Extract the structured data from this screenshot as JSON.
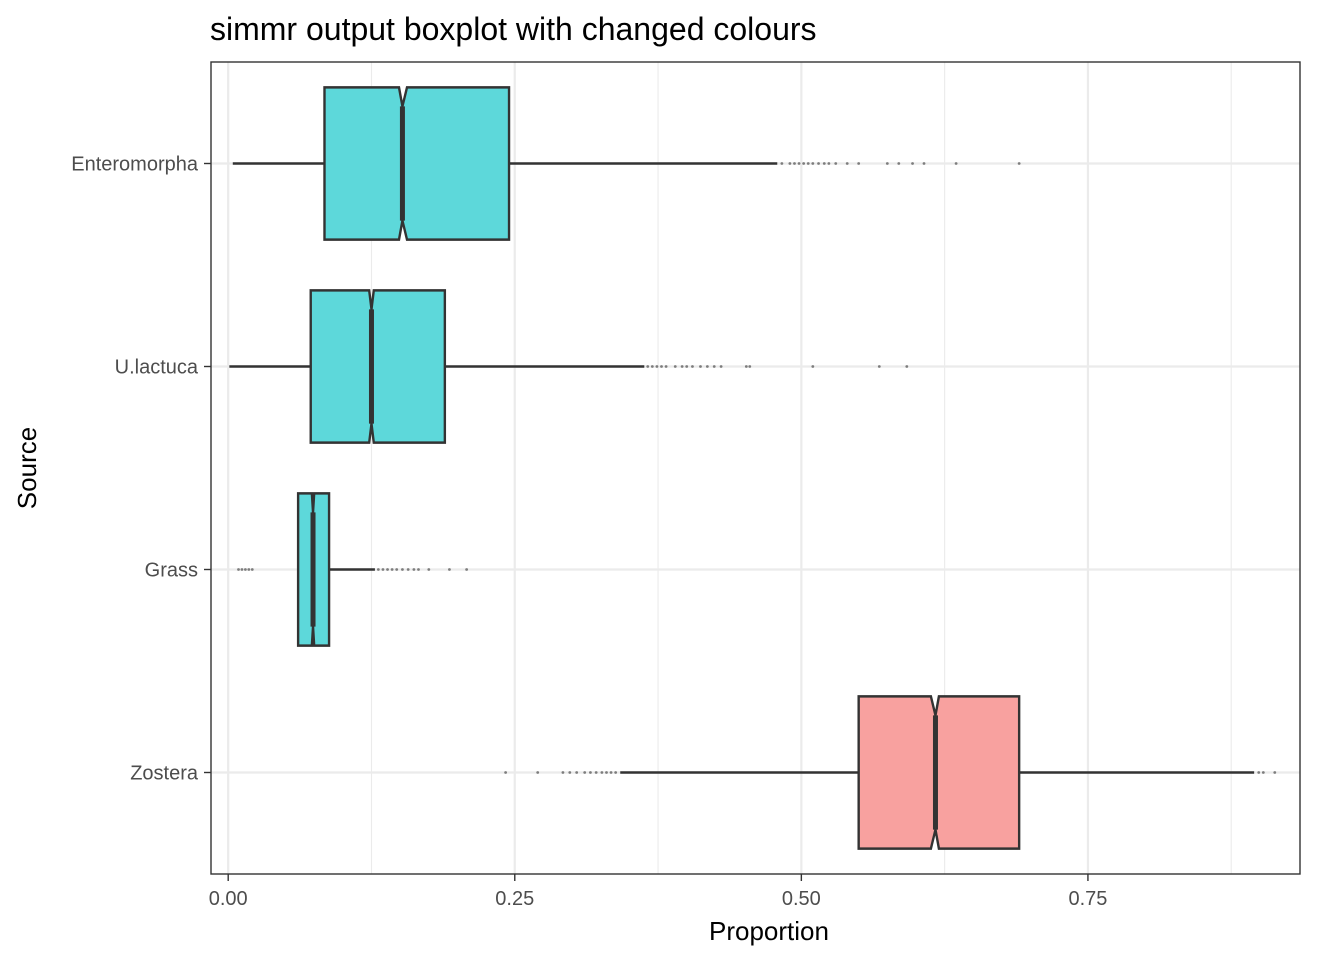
{
  "chart_data": {
    "type": "boxplot",
    "orientation": "horizontal",
    "notched": true,
    "title": "simmr output boxplot with changed colours",
    "xlabel": "Proportion",
    "ylabel": "Source",
    "xlim": [
      -0.015,
      0.935
    ],
    "x_ticks": [
      {
        "value": 0.0,
        "label": "0.00"
      },
      {
        "value": 0.25,
        "label": "0.25"
      },
      {
        "value": 0.5,
        "label": "0.50"
      },
      {
        "value": 0.75,
        "label": "0.75"
      }
    ],
    "grid": true,
    "colors": {
      "box_default": "#5dd8da",
      "box_highlight": "#f8a19f",
      "outline": "#333333",
      "grid": "#ebebeb",
      "panel_border": "#333333"
    },
    "series": [
      {
        "category": "Enteromorpha",
        "highlight": false,
        "whisker_low": 0.004,
        "q1": 0.084,
        "median": 0.152,
        "q3": 0.245,
        "whisker_high": 0.479,
        "notch_low": 0.149,
        "notch_high": 0.156,
        "outliers": [
          0.483,
          0.49,
          0.494,
          0.498,
          0.502,
          0.506,
          0.51,
          0.515,
          0.52,
          0.524,
          0.53,
          0.54,
          0.55,
          0.575,
          0.585,
          0.597,
          0.607,
          0.635,
          0.69
        ]
      },
      {
        "category": "U.lactuca",
        "highlight": false,
        "whisker_low": 0.001,
        "q1": 0.072,
        "median": 0.125,
        "q3": 0.189,
        "whisker_high": 0.363,
        "notch_low": 0.123,
        "notch_high": 0.127,
        "outliers": [
          0.366,
          0.37,
          0.374,
          0.378,
          0.382,
          0.39,
          0.396,
          0.4,
          0.405,
          0.412,
          0.418,
          0.424,
          0.43,
          0.452,
          0.455,
          0.51,
          0.568,
          0.592
        ]
      },
      {
        "category": "Grass",
        "highlight": false,
        "whisker_low": 0.061,
        "q1": 0.061,
        "median": 0.074,
        "q3": 0.088,
        "whisker_high": 0.128,
        "notch_low": 0.073,
        "notch_high": 0.075,
        "outliers": [
          0.009,
          0.012,
          0.015,
          0.018,
          0.021,
          0.131,
          0.135,
          0.139,
          0.143,
          0.147,
          0.152,
          0.157,
          0.162,
          0.166,
          0.175,
          0.193,
          0.208
        ]
      },
      {
        "category": "Zostera",
        "highlight": true,
        "whisker_low": 0.342,
        "q1": 0.55,
        "median": 0.617,
        "q3": 0.69,
        "whisker_high": 0.895,
        "notch_low": 0.613,
        "notch_high": 0.62,
        "outliers": [
          0.242,
          0.27,
          0.292,
          0.298,
          0.304,
          0.311,
          0.316,
          0.321,
          0.326,
          0.33,
          0.334,
          0.338,
          0.899,
          0.903,
          0.913
        ]
      }
    ]
  }
}
